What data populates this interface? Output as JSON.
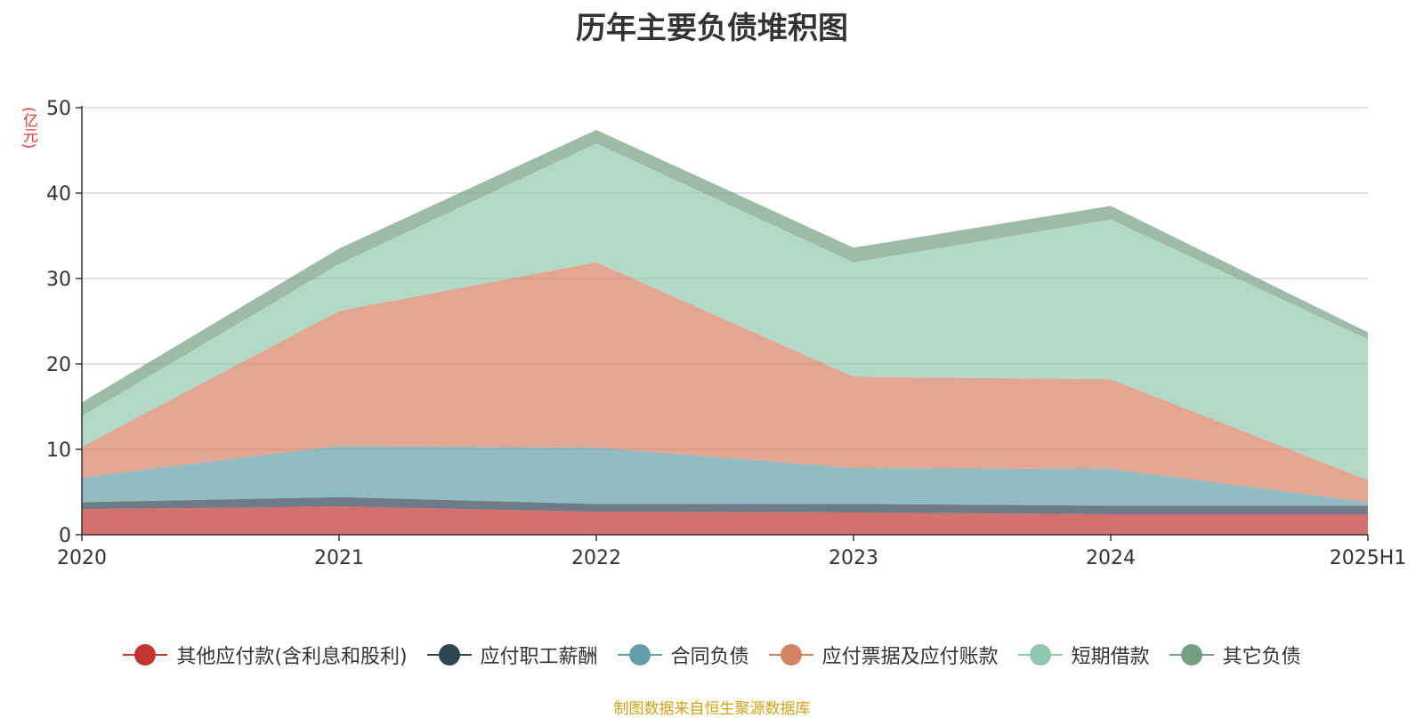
{
  "chart_data": {
    "type": "area",
    "stacked": true,
    "title": "历年主要负债堆积图",
    "ylabel": "(亿元)",
    "ylim": [
      0,
      50
    ],
    "yticks": [
      0,
      10,
      20,
      30,
      40,
      50
    ],
    "x": [
      "2020",
      "2021",
      "2022",
      "2023",
      "2024",
      "2025H1"
    ],
    "grid": true,
    "legend_position": "bottom",
    "series": [
      {
        "name": "其他应付款(含利息和股利)",
        "color": "#c23531",
        "values": [
          3.0,
          3.3,
          2.7,
          2.6,
          2.4,
          2.4
        ]
      },
      {
        "name": "应付职工薪酬",
        "color": "#2f4554",
        "values": [
          0.8,
          1.1,
          0.9,
          1.0,
          1.0,
          1.0
        ]
      },
      {
        "name": "合同负债",
        "color": "#61a0a8",
        "values": [
          2.9,
          6.0,
          6.6,
          4.2,
          4.3,
          0.4
        ]
      },
      {
        "name": "应付票据及应付账款",
        "color": "#d48265",
        "values": [
          3.6,
          15.8,
          21.7,
          10.7,
          10.5,
          2.6
        ]
      },
      {
        "name": "短期借款",
        "color": "#91c7ae",
        "values": [
          3.6,
          5.5,
          13.9,
          13.4,
          18.7,
          16.5
        ]
      },
      {
        "name": "其它负债",
        "color": "#749f83",
        "values": [
          1.6,
          1.8,
          1.6,
          1.7,
          1.6,
          0.8
        ]
      }
    ]
  },
  "source_note": "制图数据来自恒生聚源数据库"
}
